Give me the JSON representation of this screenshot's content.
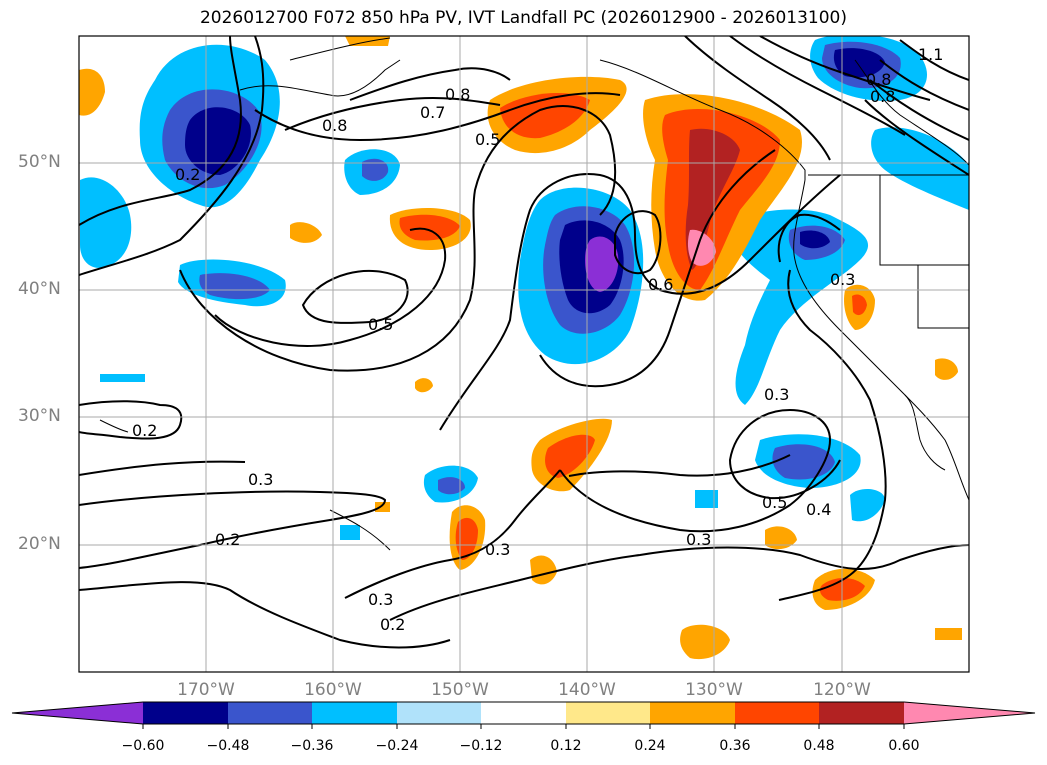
{
  "title": "2026012700 F072 850 hPa PV, IVT Landfall PC (2026012900 - 2026013100)",
  "map": {
    "lat_labels": [
      "50°N",
      "40°N",
      "30°N",
      "20°N"
    ],
    "lon_labels": [
      "170°W",
      "160°W",
      "150°W",
      "140°W",
      "130°W",
      "120°W"
    ],
    "contour_labels": [
      "0.8",
      "0.7",
      "0.5",
      "0.8",
      "0.2",
      "0.5",
      "0.6",
      "0.3",
      "0.3",
      "0.2",
      "0.3",
      "0.2",
      "0.5",
      "0.4",
      "0.3",
      "0.3",
      "0.3",
      "0.2",
      "1.1",
      "0.8",
      "0.8"
    ]
  },
  "colorbar": {
    "ticks": [
      "−0.60",
      "−0.48",
      "−0.36",
      "−0.24",
      "−0.12",
      "0.12",
      "0.24",
      "0.36",
      "0.48",
      "0.60"
    ],
    "colors": [
      "#8b2fd6",
      "#00008b",
      "#3a55cc",
      "#00bfff",
      "#b0e2fa",
      "#ffffff",
      "#ffe88a",
      "#ffa500",
      "#ff4500",
      "#b22222",
      "#ff88b0"
    ]
  }
}
